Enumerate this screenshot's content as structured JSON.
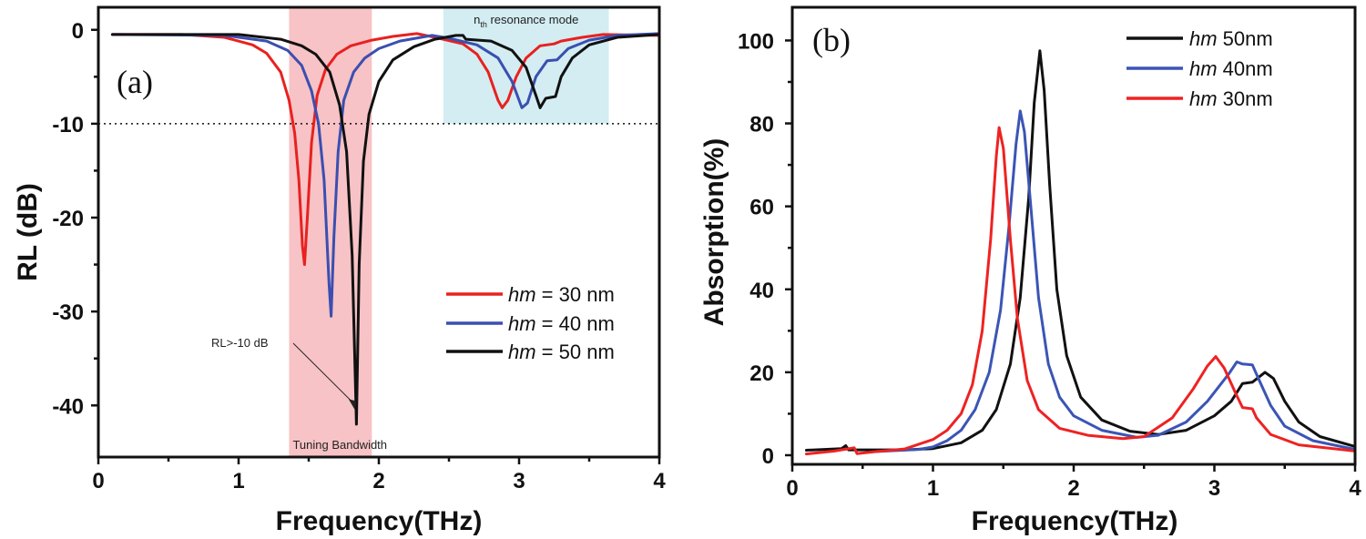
{
  "chart_data": [
    {
      "type": "line",
      "panel_label": "(a)",
      "xlabel": "Frequency(THz)",
      "ylabel": "RL (dB)",
      "xlim": [
        0,
        4
      ],
      "ylim": [
        -45.5,
        2.4
      ],
      "xticks": [
        0,
        1,
        2,
        3,
        4
      ],
      "yticks": [
        0,
        -10,
        -20,
        -30,
        -40
      ],
      "grid": false,
      "legend_placement": "center-right",
      "reference_line": {
        "y": -10,
        "style": "dotted"
      },
      "shaded_regions": [
        {
          "label": "Tuning Bandwidth",
          "x": [
            1.36,
            1.95
          ],
          "color": "#f7c3c6"
        },
        {
          "label_main": "n",
          "label_sub": "th",
          "label_rest": " resonance mode",
          "x": [
            2.46,
            3.64
          ],
          "y_bottom": -10,
          "color": "#d3edf2"
        }
      ],
      "annotations": [
        {
          "text": "RL>-10 dB",
          "arrow_to": [
            1.83,
            -40.5
          ]
        }
      ],
      "series": [
        {
          "name_italic": "hm",
          "name_rest": " = 30 nm",
          "color": "#e8211f",
          "points": [
            [
              0.1,
              -0.5
            ],
            [
              0.6,
              -0.5
            ],
            [
              0.9,
              -0.8
            ],
            [
              1.1,
              -1.6
            ],
            [
              1.2,
              -2.5
            ],
            [
              1.3,
              -4.5
            ],
            [
              1.36,
              -7.5
            ],
            [
              1.4,
              -11
            ],
            [
              1.43,
              -16
            ],
            [
              1.455,
              -23
            ],
            [
              1.47,
              -25
            ],
            [
              1.49,
              -20
            ],
            [
              1.52,
              -12
            ],
            [
              1.56,
              -7
            ],
            [
              1.62,
              -4.2
            ],
            [
              1.7,
              -2.6
            ],
            [
              1.8,
              -1.7
            ],
            [
              1.95,
              -1.1
            ],
            [
              2.1,
              -0.7
            ],
            [
              2.27,
              -0.4
            ],
            [
              2.4,
              -0.8
            ],
            [
              2.6,
              -1.5
            ],
            [
              2.7,
              -2.6
            ],
            [
              2.78,
              -4.5
            ],
            [
              2.85,
              -7.5
            ],
            [
              2.88,
              -8.3
            ],
            [
              2.92,
              -7.5
            ],
            [
              2.98,
              -5
            ],
            [
              3.05,
              -3
            ],
            [
              3.15,
              -1.7
            ],
            [
              3.25,
              -1.5
            ],
            [
              3.3,
              -1.2
            ],
            [
              3.45,
              -0.8
            ],
            [
              3.6,
              -0.5
            ],
            [
              4.0,
              -0.6
            ]
          ]
        },
        {
          "name_italic": "hm",
          "name_rest": " = 40 nm",
          "color": "#3b4fb0",
          "points": [
            [
              0.1,
              -0.5
            ],
            [
              0.9,
              -0.6
            ],
            [
              1.2,
              -1.2
            ],
            [
              1.35,
              -2.2
            ],
            [
              1.45,
              -3.8
            ],
            [
              1.52,
              -6.5
            ],
            [
              1.57,
              -10
            ],
            [
              1.61,
              -16
            ],
            [
              1.645,
              -27
            ],
            [
              1.66,
              -30.5
            ],
            [
              1.68,
              -22
            ],
            [
              1.71,
              -13
            ],
            [
              1.75,
              -7.5
            ],
            [
              1.82,
              -4.5
            ],
            [
              1.9,
              -3
            ],
            [
              2.0,
              -2
            ],
            [
              2.15,
              -1.2
            ],
            [
              2.38,
              -0.6
            ],
            [
              2.5,
              -0.9
            ],
            [
              2.7,
              -1.6
            ],
            [
              2.85,
              -3
            ],
            [
              2.95,
              -5.5
            ],
            [
              3.02,
              -8.3
            ],
            [
              3.06,
              -7.8
            ],
            [
              3.12,
              -5
            ],
            [
              3.2,
              -3.3
            ],
            [
              3.27,
              -3.2
            ],
            [
              3.35,
              -2.0
            ],
            [
              3.5,
              -1.1
            ],
            [
              3.7,
              -0.6
            ],
            [
              4.0,
              -0.4
            ]
          ]
        },
        {
          "name_italic": "hm",
          "name_rest": " = 50 nm",
          "color": "#111111",
          "points": [
            [
              0.1,
              -0.5
            ],
            [
              1.0,
              -0.5
            ],
            [
              1.3,
              -1
            ],
            [
              1.45,
              -1.7
            ],
            [
              1.55,
              -2.6
            ],
            [
              1.65,
              -4.5
            ],
            [
              1.72,
              -8
            ],
            [
              1.77,
              -13
            ],
            [
              1.81,
              -24
            ],
            [
              1.84,
              -42
            ],
            [
              1.86,
              -25
            ],
            [
              1.89,
              -14
            ],
            [
              1.93,
              -9
            ],
            [
              2.0,
              -5.5
            ],
            [
              2.1,
              -3.2
            ],
            [
              2.25,
              -1.8
            ],
            [
              2.4,
              -1.0
            ],
            [
              2.55,
              -0.6
            ],
            [
              2.6,
              -0.6
            ],
            [
              2.62,
              -1
            ],
            [
              2.8,
              -1.2
            ],
            [
              2.95,
              -2.2
            ],
            [
              3.05,
              -4
            ],
            [
              3.12,
              -7
            ],
            [
              3.15,
              -8.3
            ],
            [
              3.19,
              -7.3
            ],
            [
              3.26,
              -7.1
            ],
            [
              3.3,
              -5
            ],
            [
              3.38,
              -3
            ],
            [
              3.5,
              -1.6
            ],
            [
              3.7,
              -0.8
            ],
            [
              4.0,
              -0.5
            ]
          ]
        }
      ]
    },
    {
      "type": "line",
      "panel_label": "(b)",
      "xlabel": "Frequency(THz)",
      "ylabel": "Absorption(%)",
      "xlim": [
        0,
        4
      ],
      "ylim": [
        -2.2,
        108
      ],
      "xticks": [
        0,
        1,
        2,
        3,
        4
      ],
      "yticks": [
        0,
        20,
        40,
        60,
        80,
        100
      ],
      "grid": false,
      "legend_placement": "top-right",
      "series": [
        {
          "name_italic": "hm",
          "name_rest": " 50nm",
          "color": "#111111",
          "points": [
            [
              0.1,
              1.2
            ],
            [
              0.35,
              1.6
            ],
            [
              0.38,
              2.3
            ],
            [
              0.4,
              1.3
            ],
            [
              0.8,
              1.3
            ],
            [
              1.0,
              1.6
            ],
            [
              1.2,
              3
            ],
            [
              1.35,
              6
            ],
            [
              1.45,
              11
            ],
            [
              1.55,
              22
            ],
            [
              1.62,
              38
            ],
            [
              1.68,
              62
            ],
            [
              1.72,
              85
            ],
            [
              1.76,
              97.5
            ],
            [
              1.79,
              88
            ],
            [
              1.83,
              65
            ],
            [
              1.88,
              40
            ],
            [
              1.95,
              24
            ],
            [
              2.05,
              14
            ],
            [
              2.2,
              8.5
            ],
            [
              2.4,
              5.8
            ],
            [
              2.6,
              5
            ],
            [
              2.8,
              6
            ],
            [
              3.0,
              9.5
            ],
            [
              3.12,
              13
            ],
            [
              3.2,
              17.3
            ],
            [
              3.27,
              17.6
            ],
            [
              3.36,
              20
            ],
            [
              3.42,
              18.5
            ],
            [
              3.5,
              13
            ],
            [
              3.6,
              8
            ],
            [
              3.75,
              4.5
            ],
            [
              4.0,
              2.1
            ]
          ]
        },
        {
          "name_italic": "hm",
          "name_rest": " 40nm",
          "color": "#3b55b5",
          "points": [
            [
              0.6,
              0.9
            ],
            [
              0.9,
              1.4
            ],
            [
              1.0,
              2
            ],
            [
              1.1,
              3.5
            ],
            [
              1.2,
              6
            ],
            [
              1.3,
              11
            ],
            [
              1.4,
              20
            ],
            [
              1.48,
              35
            ],
            [
              1.54,
              55
            ],
            [
              1.59,
              75
            ],
            [
              1.62,
              83
            ],
            [
              1.65,
              78
            ],
            [
              1.7,
              58
            ],
            [
              1.75,
              38
            ],
            [
              1.82,
              22
            ],
            [
              1.9,
              14
            ],
            [
              2.0,
              9.5
            ],
            [
              2.2,
              6
            ],
            [
              2.45,
              4.3
            ],
            [
              2.6,
              4.8
            ],
            [
              2.8,
              8
            ],
            [
              2.95,
              13
            ],
            [
              3.1,
              19.5
            ],
            [
              3.16,
              22.5
            ],
            [
              3.2,
              22
            ],
            [
              3.27,
              21.8
            ],
            [
              3.32,
              18
            ],
            [
              3.4,
              12
            ],
            [
              3.5,
              7
            ],
            [
              3.7,
              3.5
            ],
            [
              4.0,
              1.4
            ]
          ]
        },
        {
          "name_italic": "hm",
          "name_rest": " 30nm",
          "color": "#ee2222",
          "points": [
            [
              0.1,
              0.3
            ],
            [
              0.3,
              1
            ],
            [
              0.44,
              1.8
            ],
            [
              0.46,
              0.4
            ],
            [
              0.6,
              0.9
            ],
            [
              0.8,
              1.5
            ],
            [
              1.0,
              3.8
            ],
            [
              1.1,
              6
            ],
            [
              1.2,
              10
            ],
            [
              1.28,
              17
            ],
            [
              1.35,
              30
            ],
            [
              1.41,
              52
            ],
            [
              1.45,
              72
            ],
            [
              1.47,
              79
            ],
            [
              1.5,
              74
            ],
            [
              1.55,
              52
            ],
            [
              1.6,
              33
            ],
            [
              1.67,
              18
            ],
            [
              1.75,
              11
            ],
            [
              1.9,
              6.5
            ],
            [
              2.1,
              4.8
            ],
            [
              2.35,
              4
            ],
            [
              2.5,
              4.5
            ],
            [
              2.7,
              9
            ],
            [
              2.85,
              16
            ],
            [
              2.95,
              21.5
            ],
            [
              3.01,
              23.8
            ],
            [
              3.07,
              21
            ],
            [
              3.15,
              15
            ],
            [
              3.2,
              11.5
            ],
            [
              3.27,
              11.2
            ],
            [
              3.3,
              9
            ],
            [
              3.4,
              5
            ],
            [
              3.6,
              2.5
            ],
            [
              4.0,
              1
            ]
          ]
        }
      ]
    }
  ]
}
